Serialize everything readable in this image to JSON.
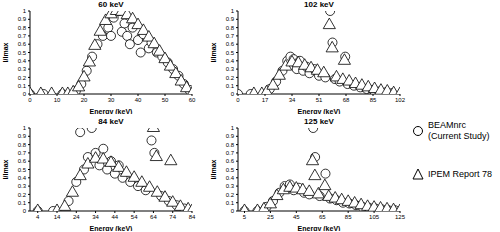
{
  "chart_data": [
    {
      "type": "scatter",
      "title": "60 keV",
      "x_label": "Energy (keV)",
      "y_label": "I/Imax",
      "xlim": [
        0,
        60
      ],
      "xticks": [
        0,
        10,
        20,
        30,
        40,
        50,
        60
      ],
      "ylim": [
        0,
        1
      ],
      "yticks": [
        0,
        0.1,
        0.2,
        0.3,
        0.4,
        0.5,
        0.6,
        0.7,
        0.8,
        0.9,
        1
      ],
      "legend": "right",
      "series": [
        {
          "name": "BEAMnrc (Current Study)",
          "color": "#000000",
          "marker": "circle",
          "x": [
            0,
            5,
            12,
            17,
            19,
            21,
            23,
            25,
            27,
            29,
            30,
            31,
            33,
            34,
            35,
            36,
            37,
            38,
            40,
            41,
            42,
            44,
            45,
            47,
            49,
            51,
            53,
            55,
            57,
            59
          ],
          "values": [
            0,
            0,
            0,
            0.04,
            0.12,
            0.28,
            0.45,
            0.6,
            0.7,
            0.8,
            0.7,
            0.92,
            1,
            0.75,
            0.85,
            0.7,
            0.6,
            0.8,
            0.65,
            0.5,
            0.72,
            0.55,
            0.62,
            0.5,
            0.45,
            0.38,
            0.3,
            0.22,
            0.12,
            0.05
          ]
        },
        {
          "name": "IPEM Report 78",
          "color": "#000000",
          "marker": "triangle",
          "x": [
            0,
            4,
            8,
            12,
            14,
            16,
            18,
            20,
            22,
            24,
            26,
            28,
            30,
            32,
            34,
            36,
            38,
            40,
            42,
            44,
            46,
            48,
            50,
            52,
            54,
            56,
            58,
            60
          ],
          "values": [
            0,
            0,
            0,
            0,
            0,
            0.02,
            0.08,
            0.2,
            0.38,
            0.58,
            0.75,
            0.88,
            0.96,
            1,
            0.99,
            0.95,
            0.9,
            0.83,
            0.76,
            0.68,
            0.6,
            0.51,
            0.42,
            0.33,
            0.24,
            0.15,
            0.07,
            0
          ]
        }
      ]
    },
    {
      "type": "scatter",
      "title": "102 keV",
      "x_label": "Energy (keV)",
      "y_label": "I/Imax",
      "xlim": [
        0,
        102
      ],
      "xticks": [
        0,
        17,
        34,
        51,
        68,
        85,
        102
      ],
      "ylim": [
        0,
        1
      ],
      "yticks": [
        0,
        0.1,
        0.2,
        0.3,
        0.4,
        0.5,
        0.6,
        0.7,
        0.8,
        0.9,
        1
      ],
      "legend": "right",
      "series": [
        {
          "name": "BEAMnrc (Current Study)",
          "color": "#000000",
          "marker": "circle",
          "x": [
            0,
            8,
            20,
            24,
            28,
            31,
            33,
            35,
            37,
            39,
            41,
            43,
            45,
            48,
            51,
            55,
            58,
            59.5,
            61,
            64,
            67.5,
            69,
            73,
            77,
            81,
            85,
            89,
            93,
            97
          ],
          "values": [
            0,
            0,
            0.06,
            0.15,
            0.28,
            0.4,
            0.45,
            0.42,
            0.3,
            0.4,
            0.28,
            0.33,
            0.25,
            0.3,
            0.22,
            0.2,
            1,
            0.62,
            0.18,
            0.15,
            0.45,
            0.12,
            0.1,
            0.08,
            0.06,
            0.05,
            0.03,
            0.02,
            0.01
          ]
        },
        {
          "name": "IPEM Report 78",
          "color": "#000000",
          "marker": "triangle",
          "x": [
            10,
            15,
            18,
            22,
            26,
            30,
            34,
            38,
            42,
            46,
            50,
            54,
            57.5,
            59.3,
            62,
            66,
            67,
            70,
            74,
            78,
            82,
            86,
            90,
            94,
            98,
            102
          ],
          "values": [
            0,
            0,
            0.02,
            0.1,
            0.22,
            0.33,
            0.38,
            0.37,
            0.34,
            0.31,
            0.28,
            0.25,
            0.83,
            0.55,
            0.2,
            0.17,
            0.4,
            0.15,
            0.12,
            0.1,
            0.08,
            0.06,
            0.04,
            0.03,
            0.01,
            0
          ]
        }
      ]
    },
    {
      "type": "scatter",
      "title": "84 keV",
      "x_label": "Energy (keV)",
      "y_label": "I/Imax",
      "xlim": [
        0,
        84
      ],
      "xticks": [
        4,
        14,
        24,
        34,
        44,
        54,
        64,
        74,
        84
      ],
      "ylim": [
        0,
        1
      ],
      "yticks": [
        0,
        0.1,
        0.2,
        0.3,
        0.4,
        0.5,
        0.6,
        0.7,
        0.8,
        0.9,
        1
      ],
      "legend": "right",
      "series": [
        {
          "name": "BEAMnrc (Current Study)",
          "color": "#000000",
          "marker": "circle",
          "x": [
            4,
            12,
            20,
            24,
            26,
            28,
            30,
            32,
            34,
            36,
            38,
            40,
            42,
            44,
            46,
            48,
            52,
            56,
            60,
            63,
            64.5,
            68,
            72,
            76,
            80
          ],
          "values": [
            0,
            0,
            0.12,
            0.35,
            0.95,
            0.5,
            0.65,
            1,
            0.7,
            0.55,
            0.75,
            0.5,
            0.6,
            0.45,
            0.55,
            0.4,
            0.35,
            0.3,
            0.25,
            0.85,
            0.7,
            0.18,
            0.12,
            0.07,
            0.03
          ]
        },
        {
          "name": "IPEM Report 78",
          "color": "#000000",
          "marker": "triangle",
          "x": [
            4,
            14,
            18,
            22,
            26,
            30,
            34,
            38,
            42,
            46,
            50,
            54,
            58,
            62,
            64,
            65.5,
            66,
            70,
            73,
            74,
            78,
            82,
            84
          ],
          "values": [
            0,
            0,
            0.05,
            0.22,
            0.42,
            0.56,
            0.63,
            0.62,
            0.58,
            0.52,
            0.46,
            0.4,
            0.34,
            0.28,
            1,
            0.65,
            0.22,
            0.16,
            0.6,
            0.1,
            0.05,
            0.02,
            0
          ]
        }
      ]
    },
    {
      "type": "scatter",
      "title": "125 keV",
      "x_label": "Energy (keV)",
      "y_label": "I/Imax",
      "xlim": [
        0,
        125
      ],
      "xticks": [
        5,
        25,
        45,
        65,
        85,
        105,
        125
      ],
      "ylim": [
        0,
        1
      ],
      "yticks": [
        0,
        0.1,
        0.2,
        0.3,
        0.4,
        0.5,
        0.6,
        0.7,
        0.8,
        0.9,
        1
      ],
      "legend": "right",
      "series": [
        {
          "name": "BEAMnrc (Current Study)",
          "color": "#000000",
          "marker": "circle",
          "x": [
            5,
            15,
            22,
            27,
            32,
            36,
            40,
            43,
            47,
            51,
            55,
            58,
            59.5,
            63,
            67.5,
            71,
            76,
            81,
            86,
            91,
            96,
            101,
            106,
            111,
            116,
            121
          ],
          "values": [
            0,
            0,
            0.05,
            0.12,
            0.22,
            0.3,
            0.32,
            0.25,
            0.28,
            0.22,
            0.2,
            1,
            0.65,
            0.18,
            0.45,
            0.15,
            0.13,
            0.1,
            0.09,
            0.07,
            0.05,
            0.04,
            0.03,
            0.02,
            0.01,
            0.01
          ]
        },
        {
          "name": "IPEM Report 78",
          "color": "#000000",
          "marker": "triangle",
          "x": [
            5,
            15,
            20,
            25,
            30,
            35,
            40,
            45,
            50,
            55,
            57.5,
            59.3,
            62,
            67,
            70,
            75,
            80,
            85,
            90,
            95,
            100,
            105,
            110,
            115,
            120,
            125
          ],
          "values": [
            0,
            0,
            0.02,
            0.08,
            0.18,
            0.25,
            0.28,
            0.27,
            0.25,
            0.23,
            0.6,
            0.42,
            0.2,
            0.3,
            0.17,
            0.15,
            0.13,
            0.11,
            0.09,
            0.07,
            0.05,
            0.04,
            0.03,
            0.02,
            0.01,
            0
          ]
        }
      ]
    }
  ]
}
